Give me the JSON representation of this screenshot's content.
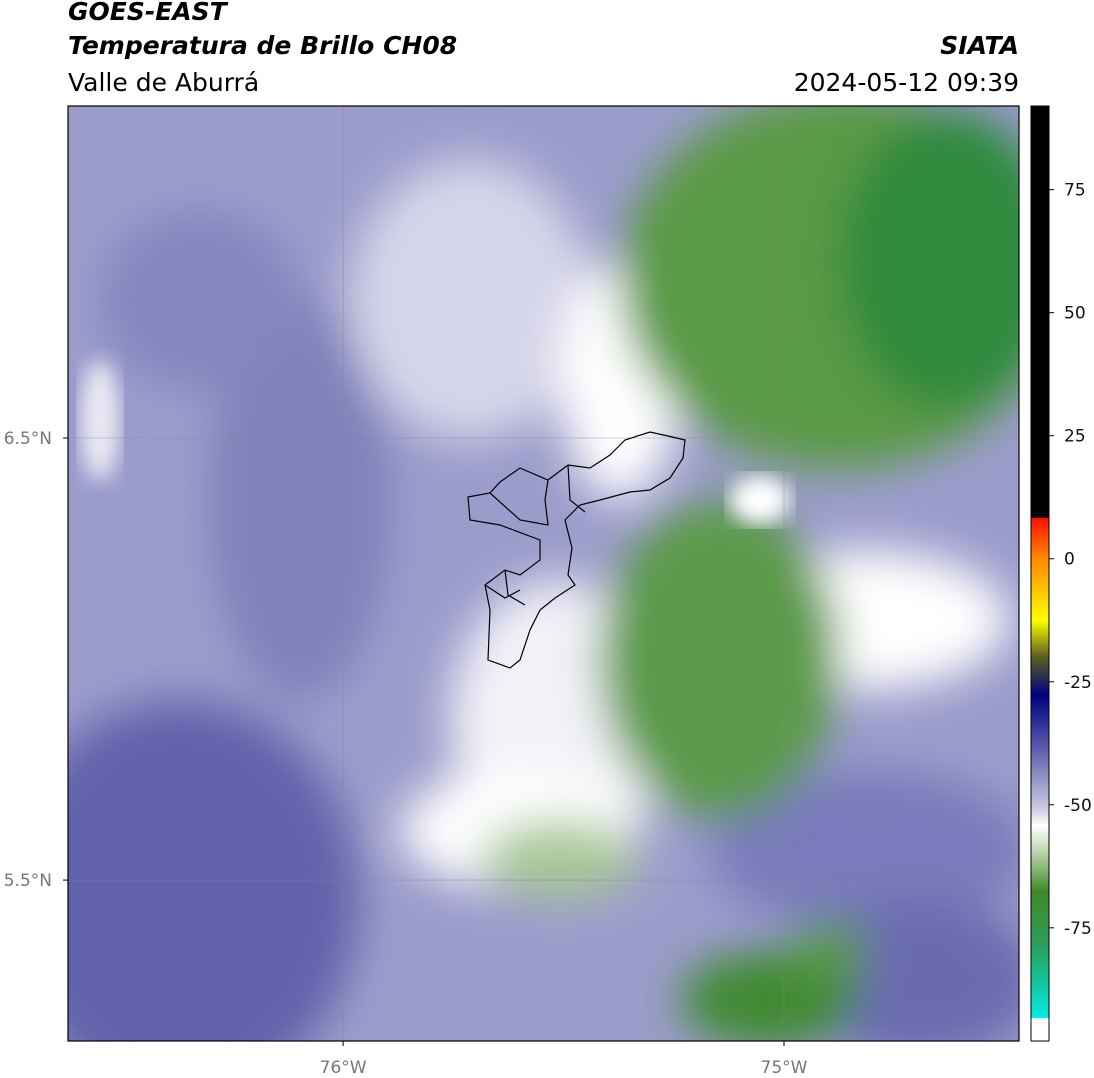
{
  "header": {
    "source": "GOES-EAST",
    "product": "Temperatura de Brillo CH08",
    "region": "Valle de Aburrá",
    "institution": "SIATA",
    "datetime": "2024-05-12 09:39"
  },
  "map": {
    "xlim": [
      -76.624,
      -74.467
    ],
    "ylim": [
      5.136,
      7.251
    ],
    "xticks": [
      {
        "value": -76,
        "label": "76°W"
      },
      {
        "value": -75,
        "label": "75°W"
      }
    ],
    "yticks": [
      {
        "value": 6.5,
        "label": "6.5°N"
      },
      {
        "value": 5.5,
        "label": "5.5°N"
      }
    ],
    "grid": true
  },
  "colorbar": {
    "lim": [
      -98,
      92
    ],
    "ticks": [
      75,
      50,
      25,
      0,
      -25,
      -50,
      -75
    ]
  }
}
